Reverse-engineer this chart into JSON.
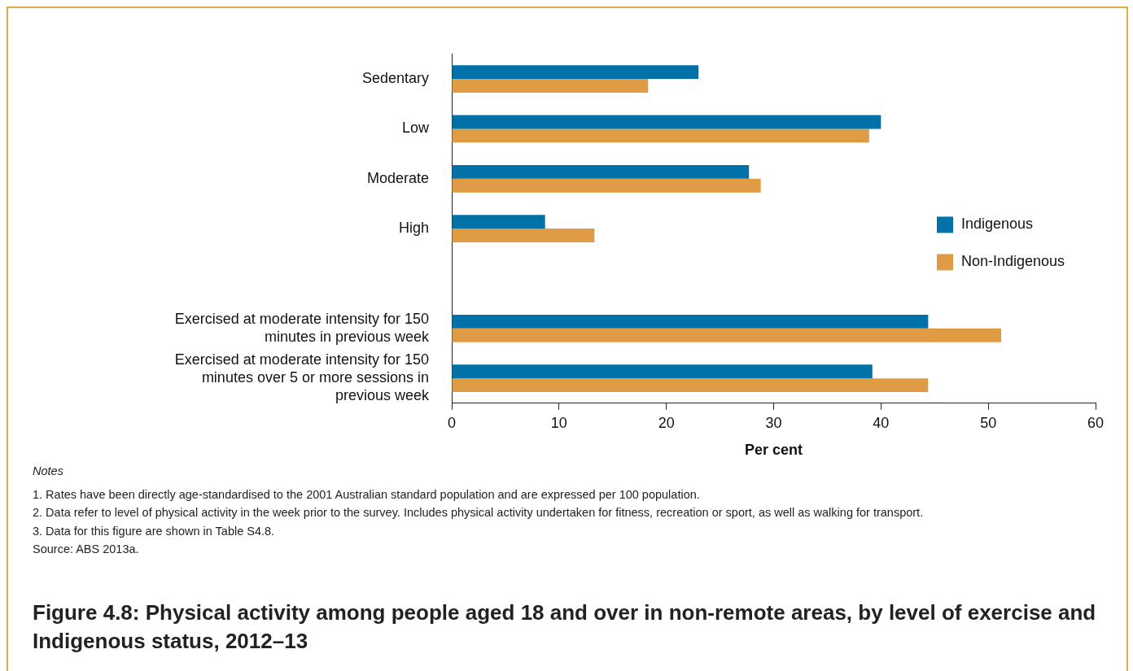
{
  "chart_data": {
    "type": "bar",
    "orientation": "horizontal",
    "title": "Figure 4.8: Physical activity among people aged 18 and over in non-remote areas, by level of exercise and Indigenous status, 2012–13",
    "xlabel": "Per cent",
    "categories": [
      "Sedentary",
      "Low",
      "Moderate",
      "High",
      null,
      "Exercised at moderate intensity for 150 minutes in previous week",
      "Exercised at moderate intensity for 150 minutes over 5 or more sessions in previous week"
    ],
    "series": [
      {
        "name": "Indigenous",
        "color": "#0072a8",
        "values": [
          23.0,
          40.0,
          27.7,
          8.7,
          null,
          44.4,
          39.2
        ]
      },
      {
        "name": "Non-Indigenous",
        "color": "#e09c44",
        "values": [
          18.3,
          38.9,
          28.8,
          13.3,
          null,
          51.2,
          44.4
        ]
      }
    ],
    "xlim": [
      0,
      60
    ],
    "xticks": [
      0,
      10,
      20,
      30,
      40,
      50,
      60
    ],
    "grid": false,
    "legend": "right",
    "annotations": [
      "Notes",
      "1. Rates have been directly age-standardised to the 2001 Australian standard population and are expressed per 100 population.",
      "2. Data refer to level of physical activity in the week prior to the survey. Includes physical activity undertaken for fitness, recreation or sport, as well as walking for transport.",
      "3. Data for this figure are shown in Table S4.8.",
      "Source: ABS 2013a."
    ]
  }
}
